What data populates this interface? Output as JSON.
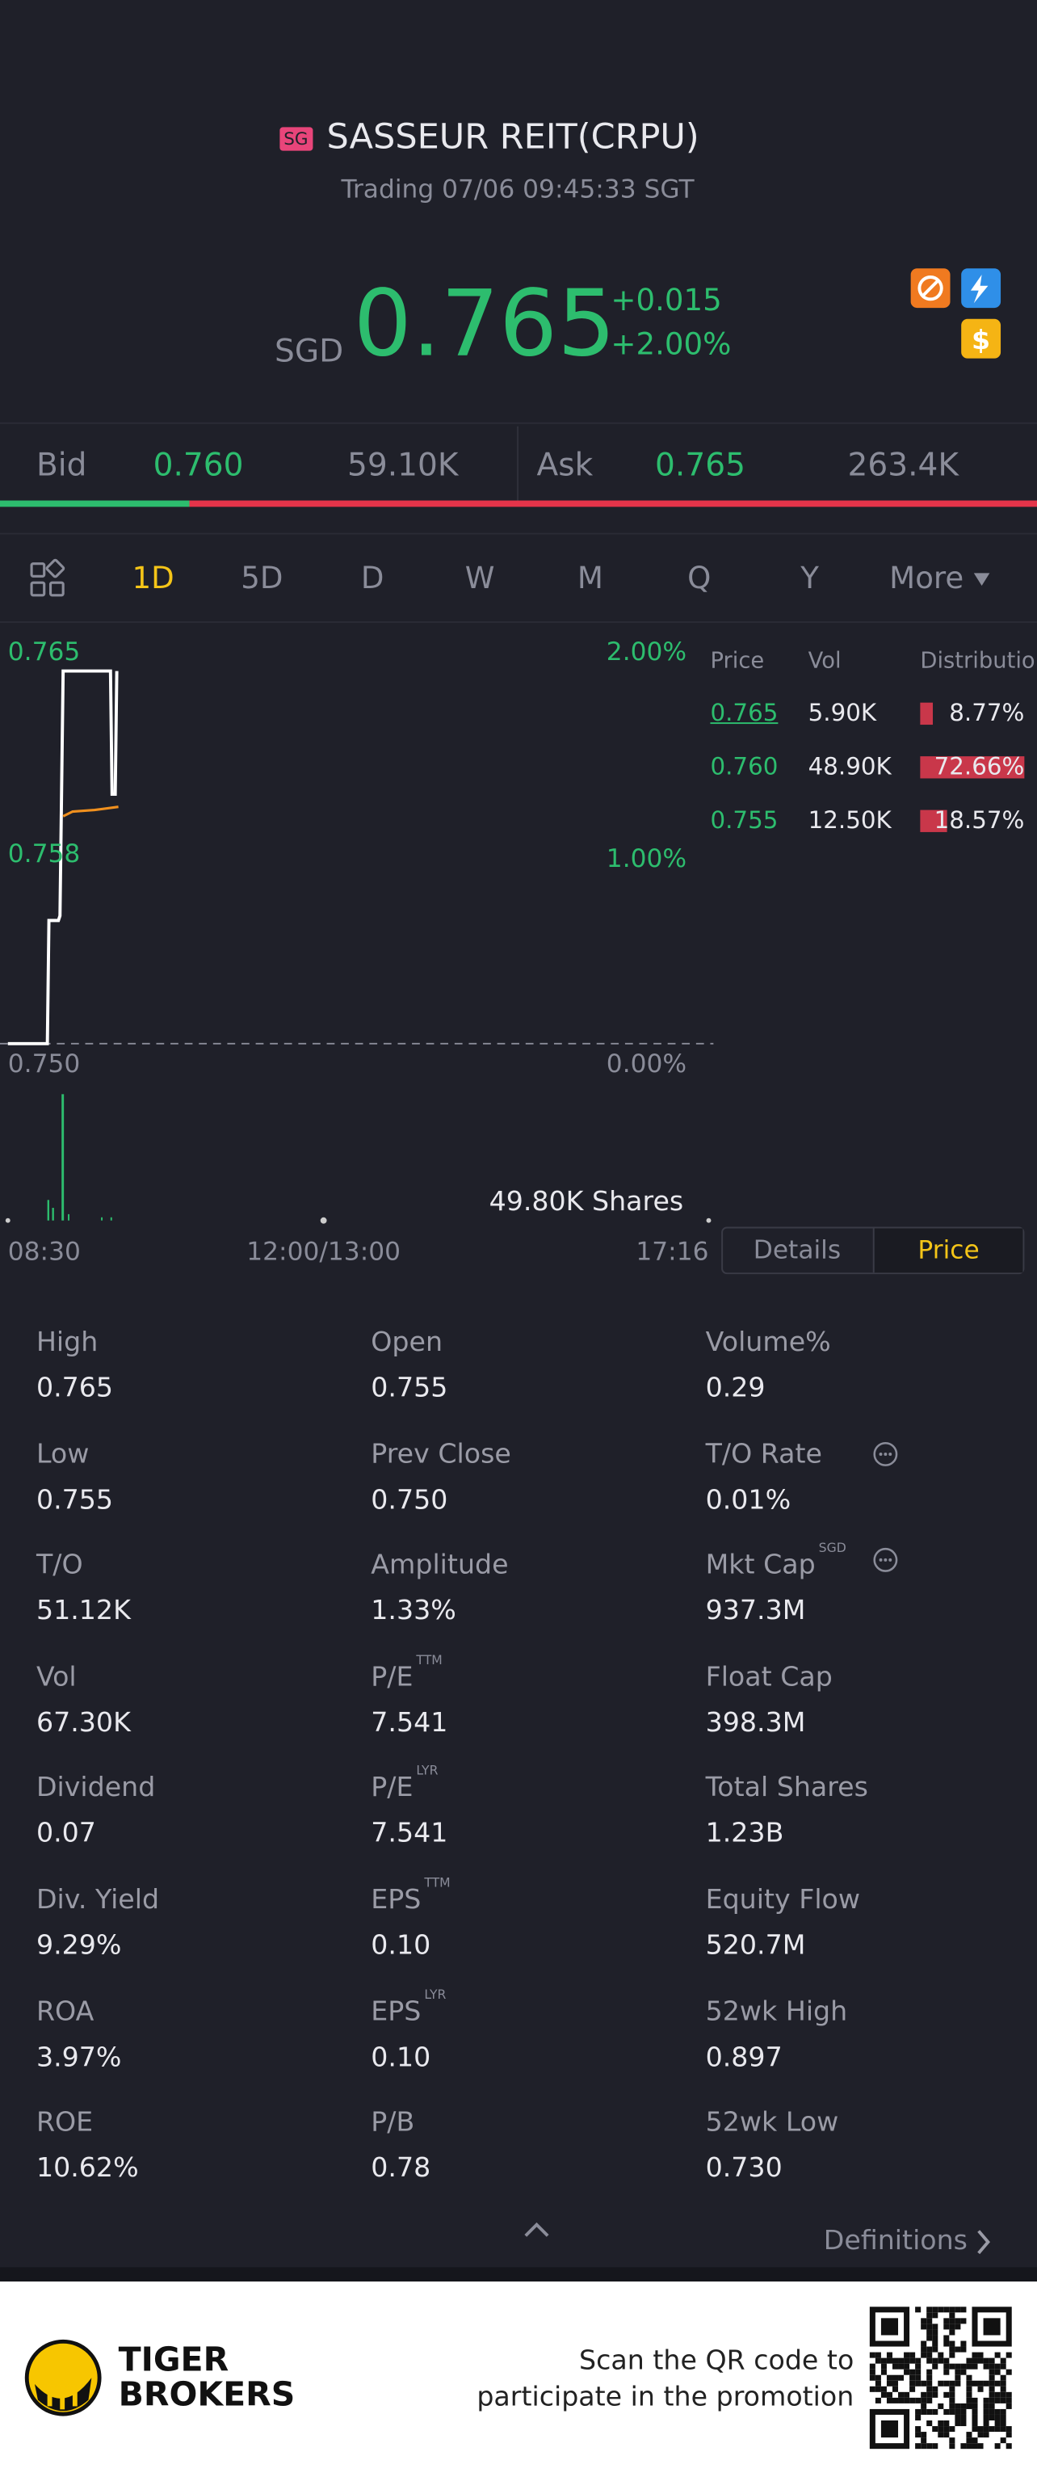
{
  "header": {
    "badge": "SG",
    "name": "SASSEUR REIT(CRPU)",
    "status": "Trading 07/06 09:45:33 SGT"
  },
  "quote": {
    "currency": "SGD",
    "price": "0.765",
    "change": "+0.015",
    "change_pct": "+2.00%"
  },
  "bid_ask": {
    "bid_label": "Bid",
    "bid_price": "0.760",
    "bid_size": "59.10K",
    "ask_label": "Ask",
    "ask_price": "0.765",
    "ask_size": "263.4K"
  },
  "tabs": [
    "1D",
    "5D",
    "D",
    "W",
    "M",
    "Q",
    "Y",
    "More"
  ],
  "chart": {
    "left_labels": [
      "0.765",
      "0.758",
      "0.750"
    ],
    "right_labels": [
      "2.00%",
      "1.00%",
      "0.00%"
    ],
    "volume": "49.80K Shares",
    "x_labels": [
      "08:30",
      "12:00/13:00",
      "17:16"
    ]
  },
  "distribution": {
    "headers": [
      "Price",
      "Vol",
      "Distribution"
    ],
    "rows": [
      {
        "price": "0.765",
        "vol": "5.90K",
        "pct": 8.77,
        "pct_label": "8.77%"
      },
      {
        "price": "0.760",
        "vol": "48.90K",
        "pct": 72.66,
        "pct_label": "72.66%"
      },
      {
        "price": "0.755",
        "vol": "12.50K",
        "pct": 18.57,
        "pct_label": "18.57%"
      }
    ]
  },
  "toggle": [
    "Details",
    "Price"
  ],
  "stats": [
    {
      "label": "High",
      "value": "0.765"
    },
    {
      "label": "Open",
      "value": "0.755"
    },
    {
      "label": "Volume%",
      "value": "0.29"
    },
    {
      "label": "Low",
      "value": "0.755"
    },
    {
      "label": "Prev Close",
      "value": "0.750"
    },
    {
      "label": "T/O Rate",
      "value": "0.01%"
    },
    {
      "label": "T/O",
      "value": "51.12K"
    },
    {
      "label": "Amplitude",
      "value": "1.33%"
    },
    {
      "label": "Mkt Cap",
      "sup": "SGD",
      "value": "937.3M"
    },
    {
      "label": "Vol",
      "value": "67.30K"
    },
    {
      "label": "P/E",
      "sup": "TTM",
      "value": "7.541"
    },
    {
      "label": "Float Cap",
      "value": "398.3M"
    },
    {
      "label": "Dividend",
      "value": "0.07"
    },
    {
      "label": "P/E",
      "sup": "LYR",
      "value": "7.541"
    },
    {
      "label": "Total Shares",
      "value": "1.23B"
    },
    {
      "label": "Div. Yield",
      "value": "9.29%"
    },
    {
      "label": "EPS",
      "sup": "TTM",
      "value": "0.10"
    },
    {
      "label": "Equity Flow",
      "value": "520.7M"
    },
    {
      "label": "ROA",
      "value": "3.97%"
    },
    {
      "label": "EPS",
      "sup": "LYR",
      "value": "0.10"
    },
    {
      "label": "52wk High",
      "value": "0.897"
    },
    {
      "label": "ROE",
      "value": "10.62%"
    },
    {
      "label": "P/B",
      "value": "0.78"
    },
    {
      "label": "52wk Low",
      "value": "0.730"
    }
  ],
  "definitions": "Definitions",
  "footer": {
    "brand": [
      "TIGER",
      "BROKERS"
    ],
    "promo": [
      "Scan the QR code to",
      "participate in the promotion"
    ]
  }
}
